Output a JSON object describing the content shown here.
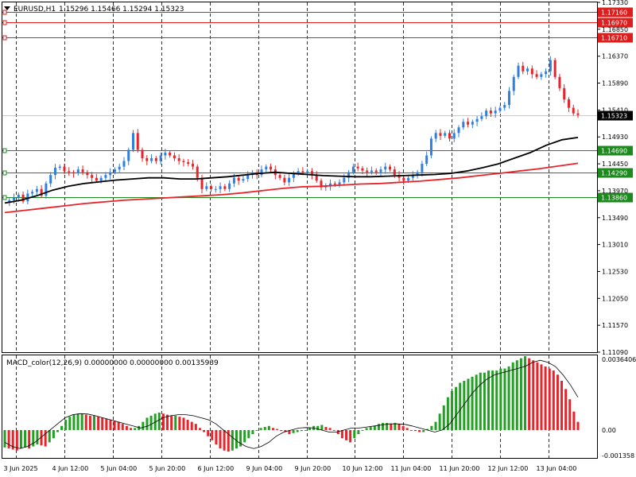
{
  "header": {
    "symbol": "EURUSD,H1",
    "ohlc": "1.15296 1.15466 1.15294 1.15323"
  },
  "macd_header": "MACD_color(12,26,9) 0.00000000 0.00000000 0.00135939",
  "colors": {
    "bull": "#2f7fe0",
    "bear": "#e8242a",
    "ma_fast": "#000000",
    "ma_slow": "#e8242a",
    "res_line": "#e01d1d",
    "sup_line": "#1c8a1c",
    "hist_up": "#22a022",
    "hist_down": "#e8242a",
    "current_tag": "#000000"
  },
  "chart_data": [
    {
      "type": "candlestick",
      "title": "EURUSD,H1",
      "ylim": [
        1.1109,
        1.1733
      ],
      "y_ticks": [
        "1.17330",
        "1.16850",
        "1.16370",
        "1.15890",
        "1.15410",
        "1.14930",
        "1.14450",
        "1.13970",
        "1.13490",
        "1.13010",
        "1.12530",
        "1.12050",
        "1.11570",
        "1.11090"
      ],
      "x_ticks": [
        "3 Jun 2025",
        "4 Jun 12:00",
        "5 Jun 04:00",
        "5 Jun 20:00",
        "6 Jun 12:00",
        "9 Jun 04:00",
        "9 Jun 20:00",
        "10 Jun 12:00",
        "11 Jun 04:00",
        "11 Jun 20:00",
        "12 Jun 12:00",
        "13 Jun 04:00"
      ],
      "resistance_levels": [
        {
          "value": 1.1716,
          "label": "1.17160"
        },
        {
          "value": 1.1697,
          "label": "1.16970"
        },
        {
          "value": 1.1671,
          "label": "1.16710"
        }
      ],
      "support_levels": [
        {
          "value": 1.1469,
          "label": "1.14690"
        },
        {
          "value": 1.1429,
          "label": "1.14290"
        },
        {
          "value": 1.1386,
          "label": "1.13860"
        }
      ],
      "current_price": {
        "value": 1.15323,
        "label": "1.15323"
      },
      "price_path": [
        1.1375,
        1.138,
        1.1385,
        1.139,
        1.1378,
        1.1392,
        1.1395,
        1.14,
        1.1388,
        1.141,
        1.1425,
        1.1438,
        1.144,
        1.1432,
        1.143,
        1.1428,
        1.1435,
        1.143,
        1.1425,
        1.142,
        1.1415,
        1.142,
        1.1425,
        1.143,
        1.1435,
        1.144,
        1.145,
        1.147,
        1.15,
        1.147,
        1.1455,
        1.145,
        1.1455,
        1.145,
        1.146,
        1.1465,
        1.146,
        1.1455,
        1.145,
        1.1448,
        1.1445,
        1.144,
        1.142,
        1.14,
        1.1405,
        1.14,
        1.14,
        1.1405,
        1.14,
        1.141,
        1.142,
        1.1415,
        1.1418,
        1.1425,
        1.143,
        1.1425,
        1.1435,
        1.144,
        1.1435,
        1.1425,
        1.142,
        1.1412,
        1.142,
        1.1428,
        1.1432,
        1.143,
        1.1432,
        1.1425,
        1.1415,
        1.1403,
        1.1405,
        1.141,
        1.1408,
        1.1412,
        1.142,
        1.143,
        1.144,
        1.1437,
        1.1433,
        1.143,
        1.1433,
        1.143,
        1.1435,
        1.144,
        1.1435,
        1.1425,
        1.142,
        1.1415,
        1.142,
        1.1425,
        1.143,
        1.1445,
        1.146,
        1.149,
        1.15,
        1.1495,
        1.15,
        1.149,
        1.15,
        1.151,
        1.152,
        1.1515,
        1.152,
        1.1525,
        1.153,
        1.154,
        1.1535,
        1.154,
        1.1545,
        1.155,
        1.1575,
        1.16,
        1.162,
        1.161,
        1.1615,
        1.1605,
        1.16,
        1.1605,
        1.161,
        1.163,
        1.16,
        1.158,
        1.156,
        1.1545,
        1.1535,
        1.1532
      ],
      "ma_fast_path": [
        1.1375,
        1.138,
        1.1388,
        1.1398,
        1.1405,
        1.141,
        1.1413,
        1.1416,
        1.1418,
        1.142,
        1.142,
        1.1418,
        1.1418,
        1.142,
        1.1422,
        1.1425,
        1.1428,
        1.143,
        1.1428,
        1.1426,
        1.1424,
        1.1423,
        1.1422,
        1.1422,
        1.1423,
        1.1424,
        1.1425,
        1.1426,
        1.1428,
        1.1432,
        1.1438,
        1.1445,
        1.1455,
        1.1465,
        1.1478,
        1.1488,
        1.1492
      ],
      "ma_slow_path": [
        1.1358,
        1.1362,
        1.1366,
        1.137,
        1.1374,
        1.1377,
        1.138,
        1.1382,
        1.1384,
        1.1386,
        1.1388,
        1.139,
        1.1393,
        1.1397,
        1.1401,
        1.1404,
        1.1405,
        1.1407,
        1.1409,
        1.141,
        1.1412,
        1.1414,
        1.1417,
        1.142,
        1.1424,
        1.1428,
        1.1432,
        1.1436,
        1.1441,
        1.1446
      ],
      "macd": {
        "ylim": [
          -0.0013589,
          0.0036406
        ],
        "y_ticks": [
          "0.0036406",
          "0.00",
          "-0.001358"
        ],
        "values": [
          -0.00085,
          -0.0009,
          -0.00095,
          -0.001,
          -0.0009,
          -0.00085,
          -0.0009,
          -0.0008,
          -0.0007,
          -0.00075,
          -0.0008,
          -0.0006,
          -0.0004,
          -0.0001,
          0.0002,
          0.0005,
          0.00065,
          0.00075,
          0.0008,
          0.0008,
          0.00075,
          0.0007,
          0.0007,
          0.00065,
          0.0006,
          0.00055,
          0.0005,
          0.00045,
          0.0004,
          0.0003,
          0.0002,
          0.0001,
          0.0001,
          0.0002,
          0.0004,
          0.0006,
          0.0007,
          0.0008,
          0.00085,
          0.0008,
          0.00075,
          0.0007,
          0.0007,
          0.00065,
          0.0006,
          0.0005,
          0.0004,
          0.0003,
          0.0001,
          -0.0001,
          -0.0003,
          -0.0005,
          -0.0007,
          -0.0009,
          -0.001,
          -0.00105,
          -0.001,
          -0.0009,
          -0.0008,
          -0.0006,
          -0.0004,
          -0.0002,
          0.0,
          0.0001,
          0.00015,
          0.0002,
          0.0001,
          5e-05,
          -5e-05,
          -0.0001,
          -0.0002,
          -0.00015,
          -0.0001,
          -5e-05,
          0.0,
          0.0001,
          0.0002,
          0.0002,
          0.00025,
          0.00015,
          0.0001,
          0.0,
          -0.0002,
          -0.0004,
          -0.0005,
          -0.0006,
          -0.0004,
          -0.0002,
          0.0,
          0.0001,
          0.00015,
          0.0002,
          0.0003,
          0.00035,
          0.00035,
          0.0003,
          0.00035,
          0.0003,
          0.0002,
          0.0001,
          0.0,
          -5e-05,
          -0.0001,
          -0.0001,
          5e-05,
          0.0002,
          0.0004,
          0.0008,
          0.0012,
          0.0016,
          0.0019,
          0.0021,
          0.0023,
          0.0024,
          0.0025,
          0.0026,
          0.0027,
          0.0028,
          0.0028,
          0.0029,
          0.0029,
          0.0029,
          0.003,
          0.003,
          0.0031,
          0.0033,
          0.0034,
          0.0035,
          0.0036,
          0.0035,
          0.0034,
          0.0033,
          0.0032,
          0.0031,
          0.003,
          0.0029,
          0.0027,
          0.0024,
          0.002,
          0.0015,
          0.0009,
          0.0004
        ],
        "signal_path": [
          -0.0006,
          -0.0008,
          -0.0009,
          -0.0008,
          -0.0006,
          -0.0003,
          0.0,
          0.0003,
          0.0006,
          0.00075,
          0.0008,
          0.00078,
          0.0007,
          0.0006,
          0.0005,
          0.0004,
          0.0003,
          0.0002,
          0.0001,
          0.0002,
          0.0004,
          0.0006,
          0.0007,
          0.00075,
          0.00075,
          0.0007,
          0.0006,
          0.0005,
          0.0003,
          0.0,
          -0.0003,
          -0.0006,
          -0.0008,
          -0.0009,
          -0.0008,
          -0.0006,
          -0.0003,
          -0.0001,
          0.0,
          0.0001,
          0.00012,
          0.0001,
          0.0,
          -0.0001,
          -0.0001,
          0.0,
          0.0001,
          0.0001,
          0.00015,
          0.0002,
          0.00025,
          0.0003,
          0.0003,
          0.00028,
          0.0002,
          0.0001,
          0.0,
          -0.0001,
          0.0,
          0.0003,
          0.0008,
          0.0013,
          0.0018,
          0.0022,
          0.0025,
          0.0027,
          0.0028,
          0.0029,
          0.003,
          0.0031,
          0.0033,
          0.0034,
          0.0033,
          0.0031,
          0.0027,
          0.0022,
          0.0016
        ]
      }
    }
  ]
}
